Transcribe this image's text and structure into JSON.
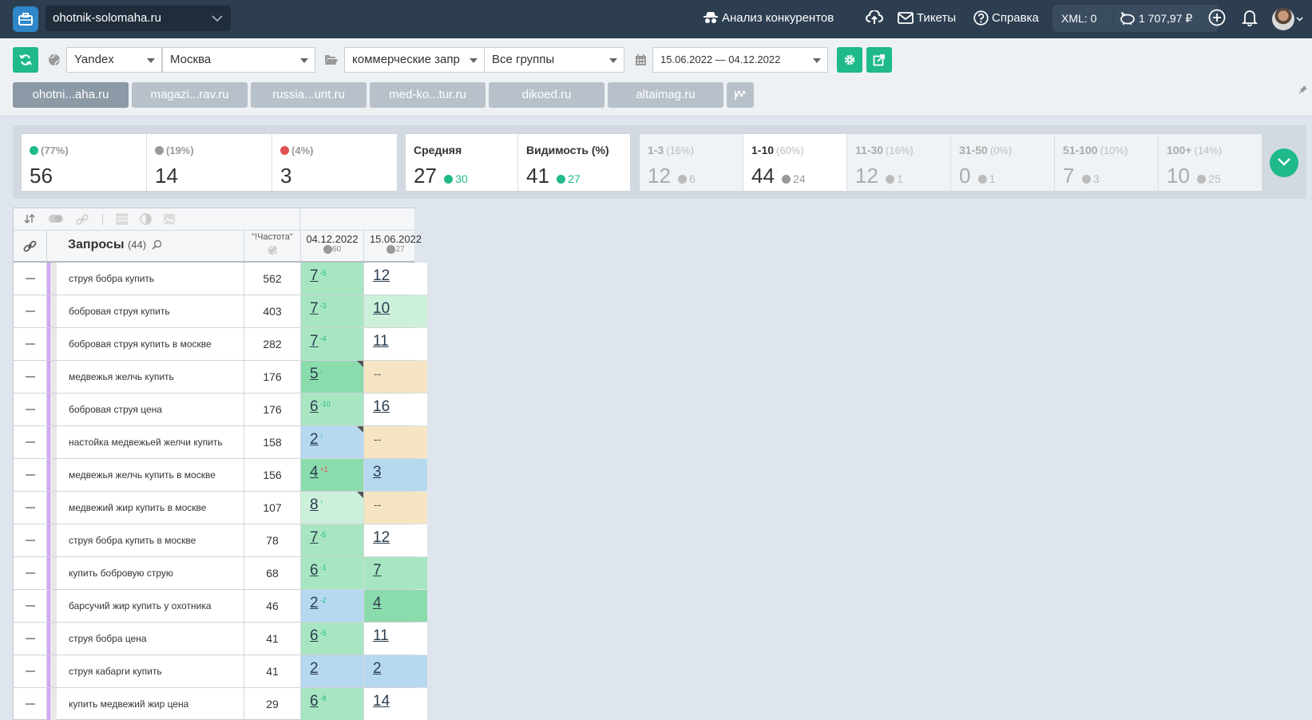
{
  "topbar": {
    "site": "ohotnik-solomaha.ru",
    "competitors": "Анализ конкурентов",
    "tickets": "Тикеты",
    "help": "Справка",
    "xml": "XML: 0",
    "balance": "1 707,97 ₽"
  },
  "filters": {
    "engine": "Yandex",
    "region": "Москва",
    "keyword_group_type": "коммерческие запр",
    "groups": "Все группы",
    "date_range": "15.06.2022 — 04.12.2022"
  },
  "site_tabs": [
    "ohotni...aha.ru",
    "magazi...rav.ru",
    "russia...unt.ru",
    "med-ko...tur.ru",
    "dikoed.ru",
    "altaimag.ru"
  ],
  "stats": {
    "up": {
      "pct": "(77%)",
      "value": "56"
    },
    "same": {
      "pct": "(19%)",
      "value": "14"
    },
    "down": {
      "pct": "(4%)",
      "value": "3"
    },
    "avg": {
      "label": "Средняя",
      "value": "27",
      "delta": "30"
    },
    "visibility": {
      "label": "Видимость (%)",
      "value": "41",
      "delta": "27"
    },
    "ranges": [
      {
        "label": "1-3",
        "pct": "(16%)",
        "value": "12",
        "delta": "6",
        "dir": "up"
      },
      {
        "label": "1-10",
        "pct": "(60%)",
        "value": "44",
        "delta": "24",
        "dir": "up"
      },
      {
        "label": "11-30",
        "pct": "(16%)",
        "value": "12",
        "delta": "1",
        "dir": "down"
      },
      {
        "label": "31-50",
        "pct": "(0%)",
        "value": "0",
        "delta": "1",
        "dir": "down"
      },
      {
        "label": "51-100",
        "pct": "(10%)",
        "value": "7",
        "delta": "3",
        "dir": "up"
      },
      {
        "label": "100+",
        "pct": "(14%)",
        "value": "10",
        "delta": "25",
        "dir": "down"
      }
    ]
  },
  "table": {
    "header": {
      "queries": "Запросы",
      "count": "(44)",
      "freq": "\"!Частота\"",
      "date1": "04.12.2022",
      "date1_sub": "60",
      "date2": "15.06.2022",
      "date2_sub": "27"
    },
    "rows": [
      {
        "q": "струя бобра купить",
        "f": "562",
        "p1": "7",
        "d1": "-5",
        "p2": "12",
        "bg1": "g1",
        "bg2": "w"
      },
      {
        "q": "бобровая струя купить",
        "f": "403",
        "p1": "7",
        "d1": "-3",
        "p2": "10",
        "bg1": "g1",
        "bg2": "g3"
      },
      {
        "q": "бобровая струя купить в москве",
        "f": "282",
        "p1": "7",
        "d1": "-4",
        "p2": "11",
        "bg1": "g1",
        "bg2": "w"
      },
      {
        "q": "медвежья желчь купить",
        "f": "176",
        "p1": "5",
        "d1": "↑",
        "p2": "--",
        "bg1": "g2",
        "bg2": "y",
        "corner": true
      },
      {
        "q": "бобровая струя цена",
        "f": "176",
        "p1": "6",
        "d1": "-10",
        "p2": "16",
        "bg1": "g1",
        "bg2": "w"
      },
      {
        "q": "настойка медвежьей желчи купить",
        "f": "158",
        "p1": "2",
        "d1": "↑",
        "p2": "--",
        "bg1": "b",
        "bg2": "y",
        "corner": true
      },
      {
        "q": "медвежья желчь купить в москве",
        "f": "156",
        "p1": "4",
        "d1": "+1",
        "red": true,
        "p2": "3",
        "bg1": "g2",
        "bg2": "b"
      },
      {
        "q": "медвежий жир купить в москве",
        "f": "107",
        "p1": "8",
        "d1": "↑",
        "p2": "--",
        "bg1": "g3",
        "bg2": "y",
        "corner": true
      },
      {
        "q": "струя бобра купить в москве",
        "f": "78",
        "p1": "7",
        "d1": "-5",
        "p2": "12",
        "bg1": "g1",
        "bg2": "w"
      },
      {
        "q": "купить бобровую струю",
        "f": "68",
        "p1": "6",
        "d1": "-1",
        "p2": "7",
        "bg1": "g1",
        "bg2": "g1"
      },
      {
        "q": "барсучий жир купить у охотника",
        "f": "46",
        "p1": "2",
        "d1": "-2",
        "p2": "4",
        "bg1": "b",
        "bg2": "g2"
      },
      {
        "q": "струя бобра цена",
        "f": "41",
        "p1": "6",
        "d1": "-5",
        "p2": "11",
        "bg1": "g1",
        "bg2": "w"
      },
      {
        "q": "струя кабарги купить",
        "f": "41",
        "p1": "2",
        "d1": "",
        "p2": "2",
        "bg1": "b",
        "bg2": "b"
      },
      {
        "q": "купить медвежий жир цена",
        "f": "29",
        "p1": "6",
        "d1": "-8",
        "p2": "14",
        "bg1": "g1",
        "bg2": "w"
      }
    ]
  }
}
